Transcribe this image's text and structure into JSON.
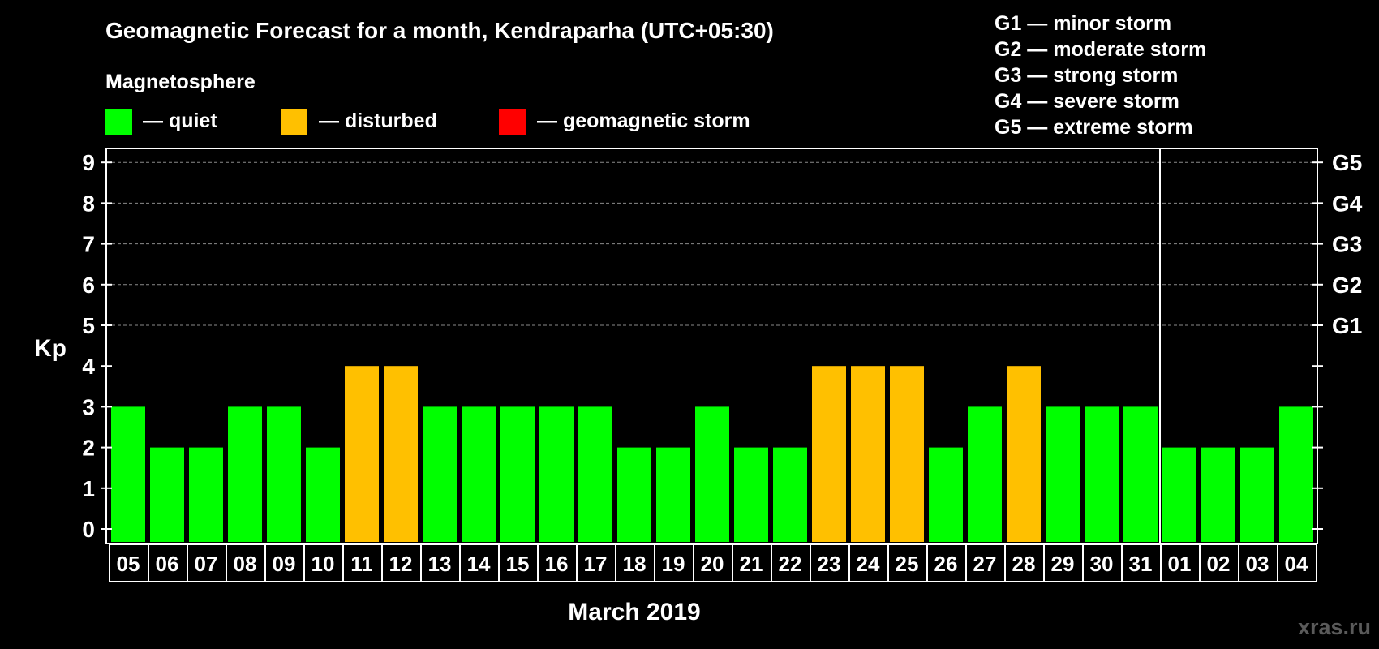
{
  "chart_data": {
    "type": "bar",
    "title": "Geomagnetic Forecast for a month, Kendraparha (UTC+05:30)",
    "legend_title": "Magnetosphere",
    "legend": [
      {
        "label": "— quiet",
        "color": "#00ff00"
      },
      {
        "label": "— disturbed",
        "color": "#ffc000"
      },
      {
        "label": "— geomagnetic storm",
        "color": "#ff0000"
      }
    ],
    "storm_scale": [
      "G1 — minor storm",
      "G2 — moderate storm",
      "G3 — strong storm",
      "G4 — severe storm",
      "G5 — extreme storm"
    ],
    "ylabel": "Kp",
    "xlabel": "March 2019",
    "ylim": [
      0,
      9
    ],
    "yticks": [
      "0",
      "1",
      "2",
      "3",
      "4",
      "5",
      "6",
      "7",
      "8",
      "9"
    ],
    "right_ticks": [
      {
        "kp": 5,
        "label": "G1"
      },
      {
        "kp": 6,
        "label": "G2"
      },
      {
        "kp": 7,
        "label": "G3"
      },
      {
        "kp": 8,
        "label": "G4"
      },
      {
        "kp": 9,
        "label": "G5"
      }
    ],
    "grid_dashed_levels": [
      5,
      6,
      7,
      8,
      9
    ],
    "month_divider_after": "31",
    "categories": [
      "05",
      "06",
      "07",
      "08",
      "09",
      "10",
      "11",
      "12",
      "13",
      "14",
      "15",
      "16",
      "17",
      "18",
      "19",
      "20",
      "21",
      "22",
      "23",
      "24",
      "25",
      "26",
      "27",
      "28",
      "29",
      "30",
      "31",
      "01",
      "02",
      "03",
      "04"
    ],
    "values": [
      3,
      2,
      2,
      3,
      3,
      2,
      4,
      4,
      3,
      3,
      3,
      3,
      3,
      2,
      2,
      3,
      2,
      2,
      4,
      4,
      4,
      2,
      3,
      4,
      3,
      3,
      3,
      2,
      2,
      2,
      3
    ],
    "status": [
      "quiet",
      "quiet",
      "quiet",
      "quiet",
      "quiet",
      "quiet",
      "disturbed",
      "disturbed",
      "quiet",
      "quiet",
      "quiet",
      "quiet",
      "quiet",
      "quiet",
      "quiet",
      "quiet",
      "quiet",
      "quiet",
      "disturbed",
      "disturbed",
      "disturbed",
      "quiet",
      "quiet",
      "disturbed",
      "quiet",
      "quiet",
      "quiet",
      "quiet",
      "quiet",
      "quiet",
      "quiet"
    ],
    "status_colors": {
      "quiet": "#00ff00",
      "disturbed": "#ffc000",
      "storm": "#ff0000"
    }
  },
  "watermark": "xras.ru"
}
